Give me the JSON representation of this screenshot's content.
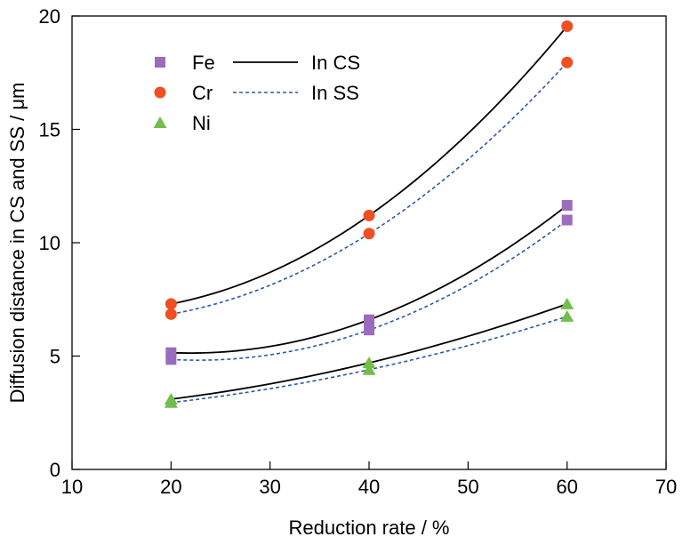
{
  "chart_data": {
    "type": "scatter",
    "xlabel": "Reduction rate / %",
    "ylabel": "Diffusion distance in CS and SS / μm",
    "xlim": [
      10,
      70
    ],
    "ylim": [
      0,
      20
    ],
    "xticks": [
      10,
      20,
      30,
      40,
      50,
      60,
      70
    ],
    "yticks": [
      0,
      5,
      10,
      15,
      20
    ],
    "grid": false,
    "legend_placement": "top-left",
    "x": [
      20,
      40,
      60
    ],
    "element_legend": [
      {
        "name": "Fe",
        "marker": "square",
        "color": "#9B6BBE"
      },
      {
        "name": "Cr",
        "marker": "circle",
        "color": "#F04E23"
      },
      {
        "name": "Ni",
        "marker": "triangle",
        "color": "#72BE4B"
      }
    ],
    "line_legend": [
      {
        "name": "In CS",
        "style": "solid",
        "color": "#000000"
      },
      {
        "name": "In SS",
        "style": "dashed",
        "color": "#2B59A6"
      }
    ],
    "series": [
      {
        "element": "Fe",
        "steel": "In CS",
        "values": [
          5.15,
          6.6,
          11.65
        ]
      },
      {
        "element": "Fe",
        "steel": "In SS",
        "values": [
          4.85,
          6.15,
          11.0
        ]
      },
      {
        "element": "Cr",
        "steel": "In CS",
        "values": [
          7.3,
          11.2,
          19.55
        ]
      },
      {
        "element": "Cr",
        "steel": "In SS",
        "values": [
          6.85,
          10.4,
          17.95
        ]
      },
      {
        "element": "Ni",
        "steel": "In CS",
        "values": [
          3.1,
          4.7,
          7.3
        ]
      },
      {
        "element": "Ni",
        "steel": "In SS",
        "values": [
          2.95,
          4.4,
          6.75
        ]
      }
    ]
  }
}
